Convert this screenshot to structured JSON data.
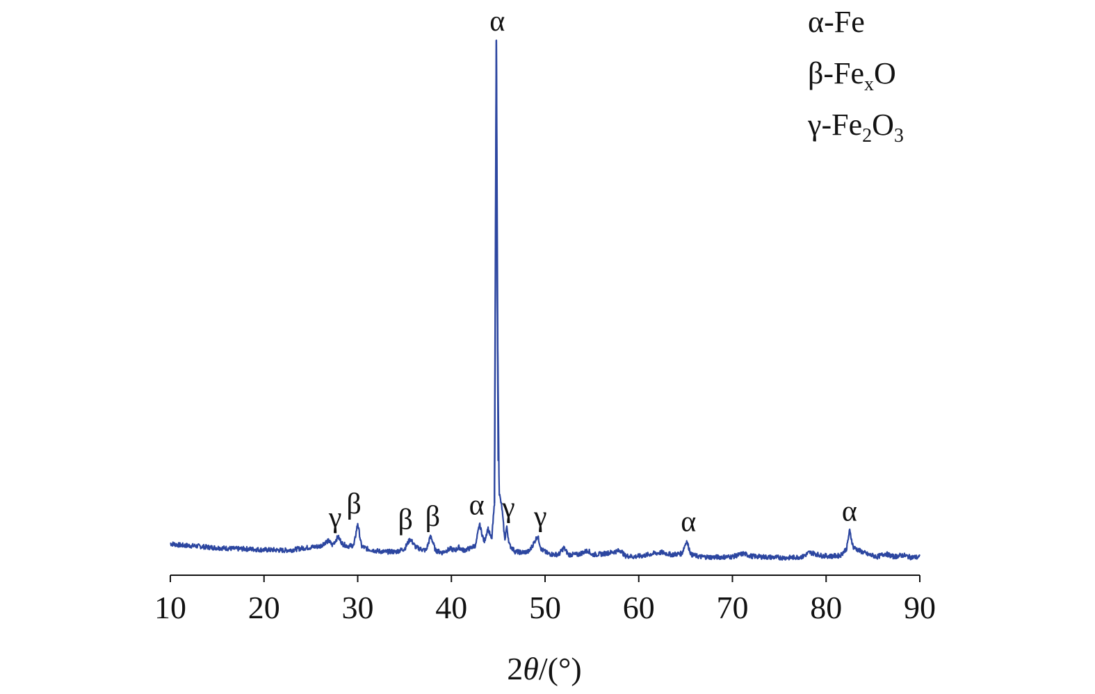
{
  "chart_data": {
    "type": "line",
    "title": "",
    "xlabel_prefix": "2",
    "xlabel_theta": "θ",
    "xlabel_suffix": "/(°)",
    "ylabel": "",
    "xlim": [
      10,
      90
    ],
    "xticks": [
      "10",
      "20",
      "30",
      "40",
      "50",
      "60",
      "70",
      "80",
      "90"
    ],
    "grid": false,
    "line_color": "#2c46a0",
    "legend": [
      {
        "symbol": "α",
        "sep": "-",
        "base": "Fe",
        "parts": []
      },
      {
        "symbol": "β",
        "sep": "-",
        "base": "Fe",
        "parts": [
          {
            "t": "x",
            "sub": true
          },
          {
            "t": "O",
            "sub": false
          }
        ]
      },
      {
        "symbol": "γ",
        "sep": "-",
        "base": "Fe",
        "parts": [
          {
            "t": "2",
            "sub": true
          },
          {
            "t": "O",
            "sub": false
          },
          {
            "t": "3",
            "sub": true
          }
        ]
      }
    ],
    "series": [
      {
        "points": [
          [
            10,
            43
          ],
          [
            11,
            40
          ],
          [
            12,
            39
          ],
          [
            13,
            38
          ],
          [
            14,
            36
          ],
          [
            15,
            35
          ],
          [
            16,
            34
          ],
          [
            17,
            33
          ],
          [
            18,
            33
          ],
          [
            19,
            32
          ],
          [
            20,
            31
          ],
          [
            21,
            31
          ],
          [
            22,
            30
          ],
          [
            23,
            31
          ],
          [
            24,
            34
          ],
          [
            25,
            36
          ],
          [
            26,
            38
          ],
          [
            26.5,
            45
          ],
          [
            26.9,
            48
          ],
          [
            27.3,
            40
          ],
          [
            27.9,
            56
          ],
          [
            28.4,
            42
          ],
          [
            29,
            38
          ],
          [
            29.6,
            40
          ],
          [
            30,
            82
          ],
          [
            30.4,
            38
          ],
          [
            31,
            33
          ],
          [
            32,
            29
          ],
          [
            33,
            27
          ],
          [
            33.6,
            28
          ],
          [
            34,
            27
          ],
          [
            35,
            33
          ],
          [
            35.6,
            52
          ],
          [
            36.2,
            36
          ],
          [
            36.8,
            32
          ],
          [
            37.3,
            30
          ],
          [
            37.8,
            58
          ],
          [
            38.3,
            30
          ],
          [
            39,
            26
          ],
          [
            39.9,
            33
          ],
          [
            40.4,
            30
          ],
          [
            40.8,
            36
          ],
          [
            41.3,
            30
          ],
          [
            42,
            34
          ],
          [
            42.6,
            40
          ],
          [
            43,
            80
          ],
          [
            43.5,
            46
          ],
          [
            43.9,
            72
          ],
          [
            44.3,
            50
          ],
          [
            44.6,
            120
          ],
          [
            44.7,
            520
          ],
          [
            44.8,
            1000
          ],
          [
            44.9,
            500
          ],
          [
            45.1,
            140
          ],
          [
            45.4,
            110
          ],
          [
            45.7,
            50
          ],
          [
            45.9,
            75
          ],
          [
            46.2,
            40
          ],
          [
            46.8,
            28
          ],
          [
            47.5,
            26
          ],
          [
            48.3,
            28
          ],
          [
            48.8,
            44
          ],
          [
            49.2,
            58
          ],
          [
            49.6,
            32
          ],
          [
            50.3,
            24
          ],
          [
            51,
            22
          ],
          [
            51.5,
            23
          ],
          [
            52,
            35
          ],
          [
            52.5,
            22
          ],
          [
            53.5,
            22
          ],
          [
            54.6,
            30
          ],
          [
            55,
            22
          ],
          [
            56,
            23
          ],
          [
            57,
            26
          ],
          [
            58.1,
            30
          ],
          [
            58.5,
            20
          ],
          [
            59.5,
            18
          ],
          [
            60.5,
            20
          ],
          [
            61.5,
            24
          ],
          [
            62.5,
            26
          ],
          [
            63.5,
            22
          ],
          [
            64.6,
            24
          ],
          [
            65.1,
            48
          ],
          [
            65.6,
            22
          ],
          [
            66.5,
            18
          ],
          [
            68,
            17
          ],
          [
            70,
            18
          ],
          [
            71.2,
            24
          ],
          [
            72,
            19
          ],
          [
            74,
            17
          ],
          [
            76,
            16
          ],
          [
            77.5,
            18
          ],
          [
            78.2,
            26
          ],
          [
            78.8,
            24
          ],
          [
            79.5,
            20
          ],
          [
            80.5,
            19
          ],
          [
            81.5,
            20
          ],
          [
            82.2,
            34
          ],
          [
            82.5,
            68
          ],
          [
            82.9,
            36
          ],
          [
            83.5,
            30
          ],
          [
            84.5,
            22
          ],
          [
            85.5,
            18
          ],
          [
            86.3,
            24
          ],
          [
            87.2,
            18
          ],
          [
            88.2,
            21
          ],
          [
            89,
            17
          ],
          [
            90,
            17
          ]
        ]
      }
    ],
    "peak_labels": [
      {
        "label": "γ",
        "x": 27.6,
        "height": 56
      },
      {
        "label": "β",
        "x": 29.6,
        "height": 82
      },
      {
        "label": "β",
        "x": 35.1,
        "height": 52
      },
      {
        "label": "β",
        "x": 38,
        "height": 58
      },
      {
        "label": "α",
        "x": 42.7,
        "height": 80
      },
      {
        "label": "α",
        "x": 44.9,
        "height": 1000
      },
      {
        "label": "γ",
        "x": 46.1,
        "height": 75
      },
      {
        "label": "γ",
        "x": 49.5,
        "height": 58
      },
      {
        "label": "α",
        "x": 65.3,
        "height": 48
      },
      {
        "label": "α",
        "x": 82.5,
        "height": 68
      }
    ]
  }
}
